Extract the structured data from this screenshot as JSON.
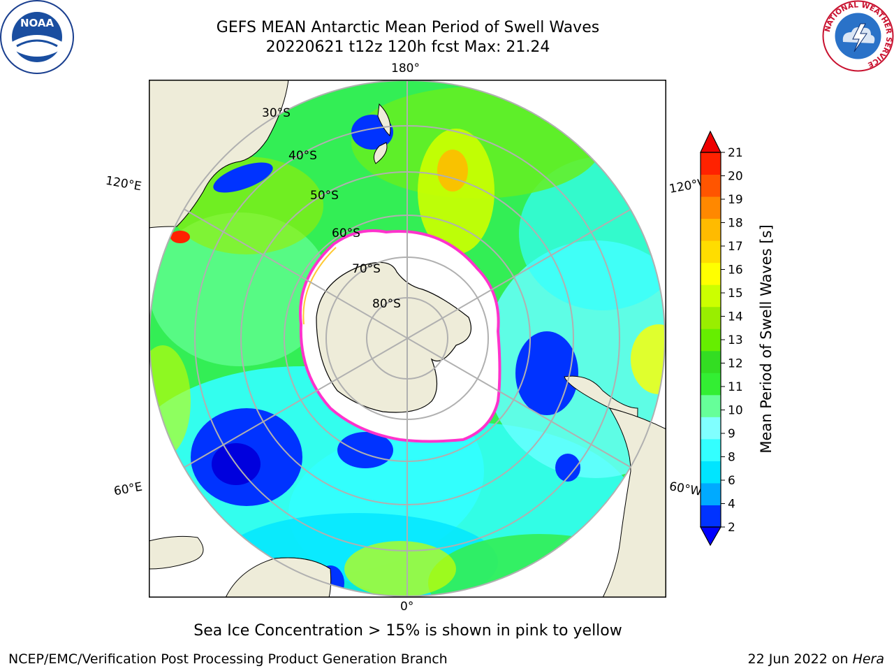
{
  "title": {
    "line1": "GEFS MEAN Antarctic Mean Period of Swell Waves",
    "line2": "20220621 t12z 120h fcst   Max: 21.24"
  },
  "logos": {
    "left": {
      "icon": "noaa-logo",
      "text": "NOAA"
    },
    "right": {
      "icon": "national-weather-service-logo",
      "text": "NATIONAL WEATHER SERVICE"
    }
  },
  "map": {
    "projection": "south-polar-stereographic",
    "longitude_labels": {
      "top": "180°",
      "upper_left": "120°E",
      "upper_right": "120°W",
      "lower_left": "60°E",
      "lower_right": "60°W",
      "bottom": "0°"
    },
    "latitude_labels": [
      "30°S",
      "40°S",
      "50°S",
      "60°S",
      "70°S",
      "80°S"
    ],
    "colors": {
      "land": "#eeecd9",
      "sea_ice_interior": "#ffffff",
      "ice_edge": "#ff33cc",
      "grid": "#b0b0b0"
    }
  },
  "colorbar": {
    "title": "Mean Period of Swell Waves [s]",
    "ticks": [
      "21",
      "20",
      "19",
      "18",
      "17",
      "16",
      "15",
      "14",
      "13",
      "12",
      "11",
      "10",
      "9",
      "8",
      "6",
      "4",
      "2"
    ],
    "colors_bottom_to_top": [
      "#0033ff",
      "#00aaff",
      "#00e5ff",
      "#33ffff",
      "#80ffff",
      "#66ff99",
      "#33ee33",
      "#33dd22",
      "#66ee00",
      "#99ee00",
      "#ccff00",
      "#ffff00",
      "#ffdd00",
      "#ffbb00",
      "#ff8800",
      "#ff5500",
      "#ff2200"
    ],
    "extend_min_color": "#0000ff",
    "extend_max_color": "#ee0000"
  },
  "footer": {
    "note": "Sea Ice Concentration > 15% is shown in pink to yellow",
    "credit": "NCEP/EMC/Verification Post Processing Product Generation Branch",
    "date": "22 Jun 2022 on",
    "host": "Hera"
  }
}
